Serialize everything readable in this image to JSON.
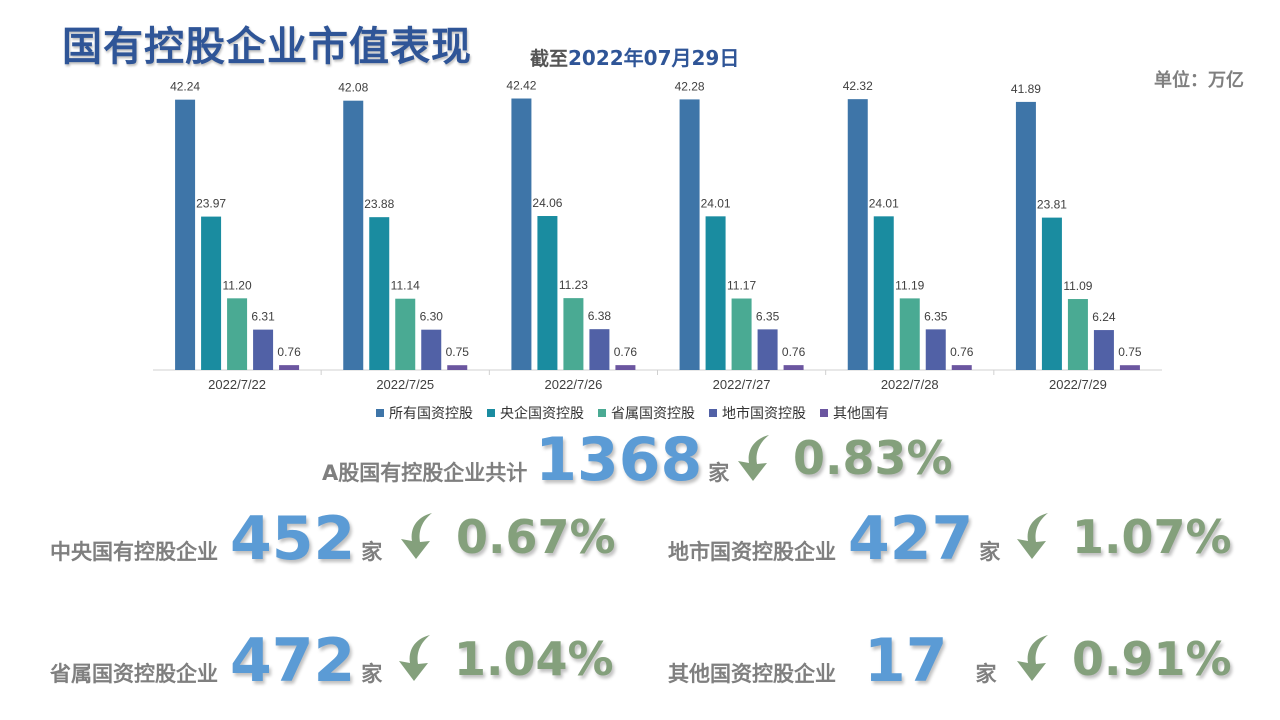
{
  "header": {
    "title": "国有控股企业市值表现",
    "asof_prefix": "截至",
    "asof_date": "2022年07月29日",
    "unit": "单位：万亿"
  },
  "chart_data": {
    "type": "bar",
    "categories": [
      "2022/7/22",
      "2022/7/25",
      "2022/7/26",
      "2022/7/27",
      "2022/7/28",
      "2022/7/29"
    ],
    "series": [
      {
        "name": "所有国资控股",
        "color": "#3E75A8",
        "values": [
          42.24,
          42.08,
          42.42,
          42.28,
          42.32,
          41.89
        ]
      },
      {
        "name": "央企国资控股",
        "color": "#1A8CA0",
        "values": [
          23.97,
          23.88,
          24.06,
          24.01,
          24.01,
          23.81
        ]
      },
      {
        "name": "省属国资控股",
        "color": "#4AAA93",
        "values": [
          11.2,
          11.14,
          11.23,
          11.17,
          11.19,
          11.09
        ]
      },
      {
        "name": "地市国资控股",
        "color": "#5161A6",
        "values": [
          6.31,
          6.3,
          6.38,
          6.35,
          6.35,
          6.24
        ]
      },
      {
        "name": "其他国有",
        "color": "#6B56A0",
        "values": [
          0.76,
          0.75,
          0.76,
          0.76,
          0.76,
          0.75
        ]
      }
    ],
    "legend_position": "bottom",
    "grid": false
  },
  "stats": {
    "total": {
      "label": "A股国有控股企业共计",
      "count": "1368",
      "unit": "家",
      "change": "0.83%",
      "direction": "down"
    },
    "central": {
      "label": "中央国有控股企业",
      "count": "452",
      "unit": "家",
      "change": "0.67%",
      "direction": "down"
    },
    "city": {
      "label": "地市国资控股企业",
      "count": "427",
      "unit": "家",
      "change": "1.07%",
      "direction": "down"
    },
    "province": {
      "label": "省属国资控股企业",
      "count": "472",
      "unit": "家",
      "change": "1.04%",
      "direction": "down"
    },
    "other": {
      "label": "其他国资控股企业",
      "count": "17",
      "unit": "家",
      "change": "0.91%",
      "direction": "down"
    }
  },
  "icons": {
    "arrow": "curved-down-arrow-icon"
  },
  "colors": {
    "title": "#2F5597",
    "count": "#5B9BD5",
    "change": "#84A07C",
    "arrow": "#84A07C"
  }
}
